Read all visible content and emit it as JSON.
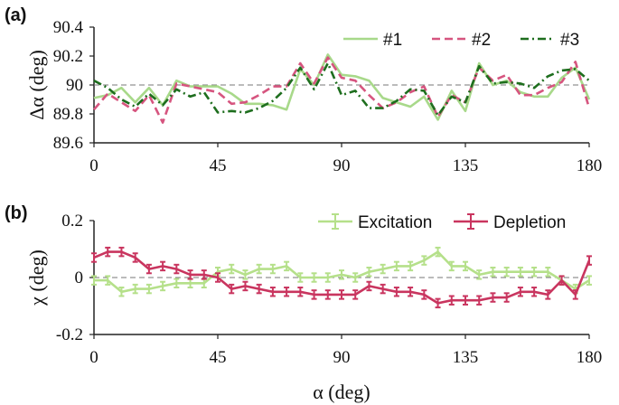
{
  "chart_data": [
    {
      "type": "line",
      "panel_label": "(a)",
      "ylabel": "Δα (deg)",
      "xlabel": "",
      "xlim": [
        0,
        180
      ],
      "ylim": [
        89.6,
        90.4
      ],
      "xticks": [
        "0",
        "45",
        "90",
        "135",
        "180"
      ],
      "yticks": [
        "89.6",
        "89.8",
        "90",
        "90.2",
        "90.4"
      ],
      "reference_line": 90,
      "legend_position": "top-right",
      "x": [
        0,
        5,
        10,
        15,
        20,
        25,
        30,
        35,
        40,
        45,
        50,
        55,
        60,
        65,
        70,
        75,
        80,
        85,
        90,
        95,
        100,
        105,
        110,
        115,
        120,
        125,
        130,
        135,
        140,
        145,
        150,
        155,
        160,
        165,
        170,
        175,
        180
      ],
      "series": [
        {
          "name": "#1",
          "color": "#a8d98a",
          "style": "solid",
          "values": [
            89.91,
            89.93,
            89.98,
            89.88,
            89.98,
            89.86,
            90.03,
            89.99,
            89.99,
            89.99,
            89.94,
            89.87,
            89.87,
            89.86,
            89.83,
            90.11,
            90.0,
            90.21,
            90.07,
            90.06,
            90.03,
            89.91,
            89.88,
            89.85,
            89.92,
            89.76,
            89.96,
            89.82,
            90.15,
            90.0,
            90.03,
            89.95,
            89.92,
            89.92,
            90.05,
            90.12,
            89.9
          ]
        },
        {
          "name": "#2",
          "color": "#d6557f",
          "style": "dashed",
          "values": [
            89.83,
            89.94,
            89.88,
            89.82,
            89.93,
            89.74,
            90.01,
            89.99,
            89.97,
            89.95,
            89.87,
            89.88,
            89.93,
            89.99,
            89.99,
            90.15,
            90.01,
            90.19,
            90.05,
            90.03,
            89.93,
            89.84,
            89.88,
            89.95,
            89.99,
            89.78,
            89.93,
            89.88,
            90.12,
            90.03,
            90.07,
            89.93,
            89.93,
            89.98,
            90.02,
            90.16,
            89.84
          ]
        },
        {
          "name": "#3",
          "color": "#1e6e1e",
          "style": "dashdot",
          "values": [
            90.03,
            89.98,
            89.9,
            89.85,
            89.94,
            89.86,
            89.97,
            89.92,
            89.95,
            89.81,
            89.82,
            89.81,
            89.84,
            89.89,
            89.98,
            90.12,
            89.97,
            90.15,
            89.93,
            89.96,
            89.84,
            89.84,
            89.89,
            89.97,
            89.96,
            89.79,
            89.92,
            89.88,
            90.13,
            90.01,
            90.02,
            90.01,
            89.98,
            90.06,
            90.1,
            90.11,
            90.03
          ]
        }
      ]
    },
    {
      "type": "line",
      "panel_label": "(b)",
      "ylabel": "χ (deg)",
      "xlabel": "α (deg)",
      "xlim": [
        0,
        180
      ],
      "ylim": [
        -0.2,
        0.2
      ],
      "xticks": [
        "0",
        "45",
        "90",
        "135",
        "180"
      ],
      "yticks": [
        "-0.2",
        "0",
        "0.2"
      ],
      "reference_line": 0,
      "legend_position": "top-right",
      "x": [
        0,
        5,
        10,
        15,
        20,
        25,
        30,
        35,
        40,
        45,
        50,
        55,
        60,
        65,
        70,
        75,
        80,
        85,
        90,
        95,
        100,
        105,
        110,
        115,
        120,
        125,
        130,
        135,
        140,
        145,
        150,
        155,
        160,
        165,
        170,
        175,
        180
      ],
      "series": [
        {
          "name": "Excitation",
          "color": "#b5e08a",
          "values": [
            -0.01,
            -0.01,
            -0.05,
            -0.04,
            -0.04,
            -0.03,
            -0.02,
            -0.02,
            -0.02,
            0.02,
            0.03,
            0.01,
            0.03,
            0.03,
            0.04,
            0.0,
            0.0,
            0.0,
            0.01,
            0.0,
            0.02,
            0.03,
            0.04,
            0.04,
            0.06,
            0.09,
            0.04,
            0.04,
            0.01,
            0.02,
            0.02,
            0.02,
            0.02,
            0.02,
            -0.01,
            -0.04,
            -0.01
          ],
          "errors": 0.015
        },
        {
          "name": "Depletion",
          "color": "#c9355f",
          "values": [
            0.07,
            0.09,
            0.09,
            0.07,
            0.03,
            0.04,
            0.03,
            0.01,
            0.01,
            0.0,
            -0.04,
            -0.03,
            -0.04,
            -0.05,
            -0.05,
            -0.05,
            -0.06,
            -0.06,
            -0.06,
            -0.06,
            -0.03,
            -0.04,
            -0.05,
            -0.05,
            -0.06,
            -0.09,
            -0.08,
            -0.08,
            -0.08,
            -0.07,
            -0.07,
            -0.05,
            -0.05,
            -0.06,
            -0.01,
            -0.06,
            0.06
          ],
          "errors": 0.015
        }
      ]
    }
  ]
}
